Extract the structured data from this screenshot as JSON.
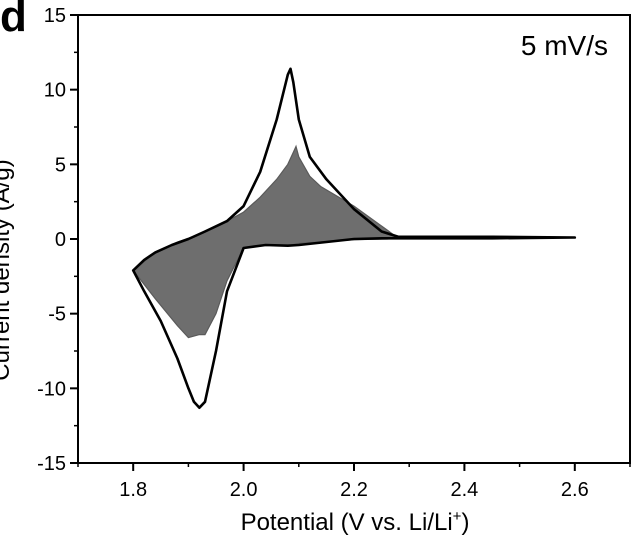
{
  "panel_label": "d",
  "annotation": "5 mV/s",
  "chart_data": {
    "type": "line",
    "title": "",
    "xlabel": "Potential (V vs. Li/Li",
    "xlabel_superscript": "+",
    "xlabel_suffix": ")",
    "ylabel": "Current density (A/g)",
    "xlim": [
      1.7,
      2.7
    ],
    "ylim": [
      -15,
      15
    ],
    "xticks": [
      "1.8",
      "2.0",
      "2.2",
      "2.4",
      "2.6"
    ],
    "yticks": [
      "-15",
      "-10",
      "-5",
      "0",
      "5",
      "10",
      "15"
    ],
    "grid": false,
    "series": [
      {
        "style": "outline",
        "color": "#000000",
        "x": [
          1.8,
          1.82,
          1.85,
          1.88,
          1.9,
          1.91,
          1.92,
          1.93,
          1.95,
          1.97,
          2.0,
          2.04,
          2.08,
          2.1,
          2.15,
          2.2,
          2.25,
          2.28,
          2.35,
          2.45,
          2.6,
          2.45,
          2.35,
          2.28,
          2.25,
          2.2,
          2.15,
          2.12,
          2.1,
          2.09,
          2.085,
          2.08,
          2.06,
          2.03,
          2.0,
          1.97,
          1.93,
          1.9,
          1.87,
          1.84,
          1.82,
          1.8
        ],
        "y": [
          -2.1,
          -3.5,
          -5.5,
          -8.0,
          -10.0,
          -10.9,
          -11.3,
          -10.9,
          -7.5,
          -3.5,
          -0.6,
          -0.4,
          -0.45,
          -0.4,
          -0.2,
          0.0,
          0.05,
          0.05,
          0.05,
          0.05,
          0.1,
          0.15,
          0.15,
          0.15,
          0.5,
          2.0,
          4.0,
          5.5,
          8.0,
          10.5,
          11.4,
          11.0,
          8.0,
          4.5,
          2.2,
          1.2,
          0.5,
          0.0,
          -0.4,
          -0.9,
          -1.4,
          -2.1
        ]
      },
      {
        "style": "filled",
        "color": "#6e6e6e",
        "x": [
          1.8,
          1.84,
          1.88,
          1.9,
          1.92,
          1.93,
          1.95,
          1.97,
          2.0,
          2.04,
          2.08,
          2.1,
          2.14,
          2.2,
          2.26,
          2.28,
          2.26,
          2.2,
          2.14,
          2.12,
          2.1,
          2.095,
          2.09,
          2.08,
          2.06,
          2.03,
          2.0,
          1.96,
          1.92,
          1.88,
          1.84,
          1.8
        ],
        "y": [
          -2.1,
          -4.0,
          -5.8,
          -6.6,
          -6.4,
          -6.4,
          -5.0,
          -2.8,
          -0.6,
          -0.4,
          -0.45,
          -0.3,
          -0.2,
          -0.05,
          0.0,
          0.05,
          0.6,
          2.2,
          3.5,
          4.2,
          5.5,
          6.2,
          5.8,
          5.0,
          4.0,
          2.8,
          1.8,
          1.0,
          0.3,
          -0.2,
          -0.9,
          -2.1
        ]
      }
    ]
  }
}
